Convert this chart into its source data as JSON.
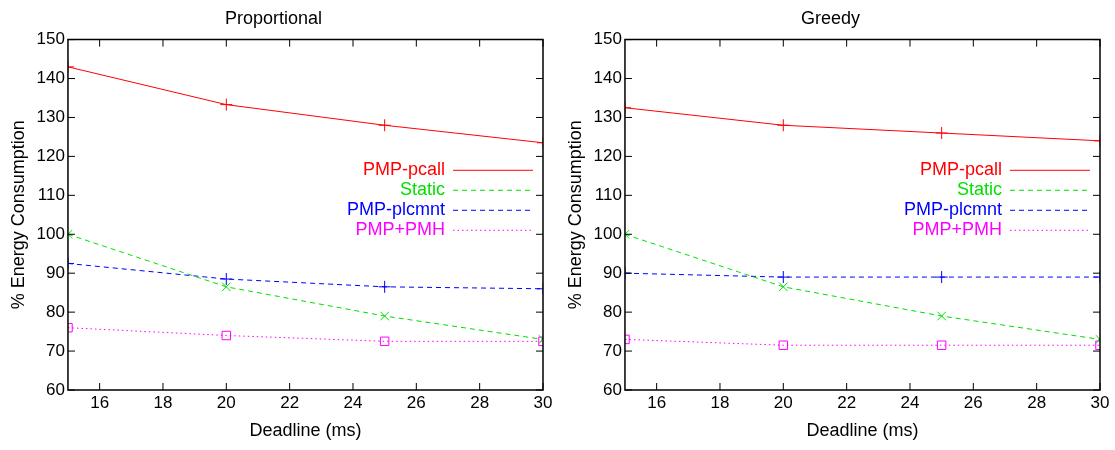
{
  "chart_data": [
    {
      "type": "line",
      "title": "Proportional",
      "xlabel": "Deadline (ms)",
      "ylabel": "% Energy Consumption",
      "x": [
        15,
        20,
        25,
        30
      ],
      "xlim": [
        15,
        30
      ],
      "xticks": [
        16,
        18,
        20,
        22,
        24,
        26,
        28,
        30
      ],
      "ylim": [
        60,
        150
      ],
      "yticks": [
        60,
        70,
        80,
        90,
        100,
        110,
        120,
        130,
        140,
        150
      ],
      "grid": false,
      "legend": "top right",
      "series": [
        {
          "name": "PMP-pcall",
          "color": "#ff0000",
          "marker": "cross",
          "line_style": "solid",
          "values": [
            143,
            133.3,
            128,
            123.5
          ]
        },
        {
          "name": "Static",
          "color": "#00e000",
          "marker": "x",
          "line_style": "dashed",
          "values": [
            100,
            86.5,
            79,
            73
          ]
        },
        {
          "name": "PMP-plcmnt",
          "color": "#0000ff",
          "marker": "cross",
          "line_style": "dashed",
          "values": [
            92.5,
            88.5,
            86.5,
            86
          ]
        },
        {
          "name": "PMP+PMH",
          "color": "#ff00ff",
          "marker": "square",
          "line_style": "dotted",
          "values": [
            76,
            74,
            72.5,
            72.5
          ]
        }
      ]
    },
    {
      "type": "line",
      "title": "Greedy",
      "xlabel": "Deadline (ms)",
      "ylabel": "% Energy Consumption",
      "x": [
        15,
        20,
        25,
        30
      ],
      "xlim": [
        15,
        30
      ],
      "xticks": [
        16,
        18,
        20,
        22,
        24,
        26,
        28,
        30
      ],
      "ylim": [
        60,
        150
      ],
      "yticks": [
        60,
        70,
        80,
        90,
        100,
        110,
        120,
        130,
        140,
        150
      ],
      "grid": false,
      "legend": "top right",
      "series": [
        {
          "name": "PMP-pcall",
          "color": "#ff0000",
          "marker": "cross",
          "line_style": "solid",
          "values": [
            132.5,
            128,
            126,
            124
          ]
        },
        {
          "name": "Static",
          "color": "#00e000",
          "marker": "x",
          "line_style": "dashed",
          "values": [
            100,
            86.5,
            79,
            73
          ]
        },
        {
          "name": "PMP-plcmnt",
          "color": "#0000ff",
          "marker": "cross",
          "line_style": "dashed",
          "values": [
            90,
            89,
            89,
            89
          ]
        },
        {
          "name": "PMP+PMH",
          "color": "#ff00ff",
          "marker": "square",
          "line_style": "dotted",
          "values": [
            73,
            71.5,
            71.5,
            71.5
          ]
        }
      ]
    }
  ]
}
